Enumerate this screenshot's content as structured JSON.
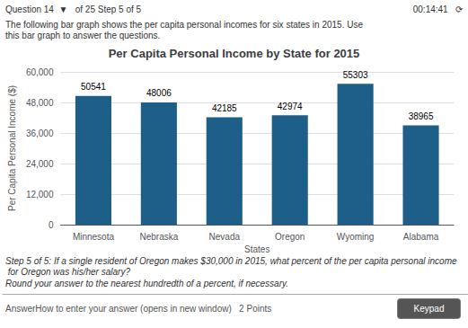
{
  "chart_data": {
    "type": "bar",
    "title": "Per Capita Personal Income by State for 2015",
    "categories": [
      "Minnesota",
      "Nebraska",
      "Nevada",
      "Oregon",
      "Wyoming",
      "Alabama"
    ],
    "values": [
      50541,
      48006,
      42185,
      42974,
      55303,
      38965
    ],
    "color": "#1e5f8a",
    "xlabel": "States",
    "ylabel": "Per Capita Personal Income ($)",
    "ylim": [
      0,
      60000
    ],
    "yticks": [
      0,
      {
        "value": 12000,
        "label": "12,000"
      },
      {
        "value": 24000,
        "label": "24,000"
      },
      {
        "value": 36000,
        "label": "36,000"
      },
      {
        "value": 48000,
        "label": "48,000"
      },
      {
        "value": 60000,
        "label": "60,000"
      }
    ],
    "grid": true,
    "data_labels": true,
    "annotations": [
      "Question 14  ▼   of 25 Step 5 of 5",
      "00:14:41   ⟳",
      "The following bar graph shows the per capita personal incomes for six states in 2015. Use this bar graph to answer the questions.",
      "Step 5 of 5: If a single resident of Oregon makes $30,000 in 2015, what percent of the per capita personal income for Oregon was his/her salary?",
      "Round your answer to the nearest hundredth of a percent, if necessary.",
      "AnswerHow to enter your answer (opens in new window)   2 Points",
      "Keypad"
    ]
  }
}
